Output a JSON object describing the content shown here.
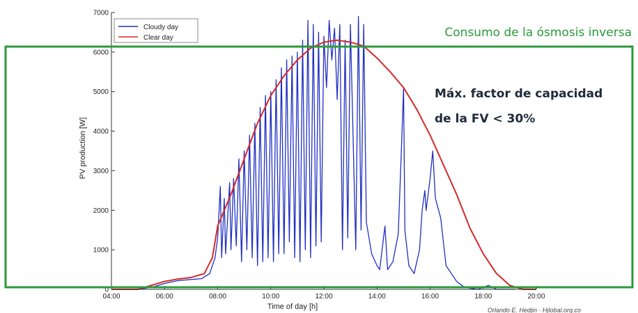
{
  "chart_data": {
    "type": "line",
    "title": "",
    "xlabel": "Time of day [h]",
    "ylabel": "PV production [W]",
    "xlim": [
      4,
      20
    ],
    "ylim": [
      0,
      7000
    ],
    "x_ticks": [
      "04:00",
      "06:00",
      "08:00",
      "10:00",
      "12:00",
      "14:00",
      "16:00",
      "18:00",
      "20:00"
    ],
    "y_ticks": [
      "0",
      "1000",
      "2000",
      "3000",
      "4000",
      "5000",
      "6000",
      "7000"
    ],
    "grid": false,
    "legend_position": "top-left",
    "series": [
      {
        "name": "Cloudy day",
        "color": "#1f2fbf",
        "points": [
          [
            4.0,
            0
          ],
          [
            5.0,
            0
          ],
          [
            5.5,
            50
          ],
          [
            6.0,
            150
          ],
          [
            6.5,
            220
          ],
          [
            7.0,
            250
          ],
          [
            7.4,
            270
          ],
          [
            7.7,
            400
          ],
          [
            7.9,
            800
          ],
          [
            8.0,
            1300
          ],
          [
            8.1,
            2600
          ],
          [
            8.15,
            800
          ],
          [
            8.25,
            2300
          ],
          [
            8.3,
            900
          ],
          [
            8.45,
            2700
          ],
          [
            8.5,
            1000
          ],
          [
            8.6,
            2800
          ],
          [
            8.7,
            1100
          ],
          [
            8.8,
            3300
          ],
          [
            8.9,
            700
          ],
          [
            9.0,
            3500
          ],
          [
            9.1,
            1000
          ],
          [
            9.2,
            3900
          ],
          [
            9.3,
            800
          ],
          [
            9.4,
            4200
          ],
          [
            9.5,
            600
          ],
          [
            9.6,
            4600
          ],
          [
            9.7,
            700
          ],
          [
            9.8,
            4900
          ],
          [
            9.9,
            800
          ],
          [
            10.0,
            5000
          ],
          [
            10.1,
            700
          ],
          [
            10.2,
            5300
          ],
          [
            10.3,
            900
          ],
          [
            10.4,
            5600
          ],
          [
            10.5,
            900
          ],
          [
            10.6,
            5800
          ],
          [
            10.7,
            1200
          ],
          [
            10.8,
            5900
          ],
          [
            10.9,
            800
          ],
          [
            11.0,
            6000
          ],
          [
            11.1,
            700
          ],
          [
            11.2,
            6300
          ],
          [
            11.3,
            1000
          ],
          [
            11.4,
            6800
          ],
          [
            11.5,
            800
          ],
          [
            11.6,
            6700
          ],
          [
            11.7,
            1100
          ],
          [
            11.8,
            6500
          ],
          [
            11.9,
            1200
          ],
          [
            12.0,
            6400
          ],
          [
            12.1,
            5100
          ],
          [
            12.2,
            6800
          ],
          [
            12.3,
            5800
          ],
          [
            12.4,
            6600
          ],
          [
            12.5,
            4800
          ],
          [
            12.6,
            6700
          ],
          [
            12.7,
            1000
          ],
          [
            12.8,
            6300
          ],
          [
            12.9,
            1300
          ],
          [
            13.0,
            6700
          ],
          [
            13.2,
            1000
          ],
          [
            13.3,
            6900
          ],
          [
            13.4,
            1500
          ],
          [
            13.5,
            6700
          ],
          [
            13.6,
            1700
          ],
          [
            13.8,
            900
          ],
          [
            14.0,
            600
          ],
          [
            14.1,
            500
          ],
          [
            14.3,
            1600
          ],
          [
            14.4,
            500
          ],
          [
            14.6,
            700
          ],
          [
            14.8,
            1400
          ],
          [
            14.9,
            3200
          ],
          [
            15.0,
            5100
          ],
          [
            15.05,
            1500
          ],
          [
            15.2,
            600
          ],
          [
            15.4,
            400
          ],
          [
            15.6,
            1000
          ],
          [
            15.7,
            2000
          ],
          [
            15.8,
            2500
          ],
          [
            15.85,
            2000
          ],
          [
            16.0,
            2800
          ],
          [
            16.1,
            3500
          ],
          [
            16.2,
            2300
          ],
          [
            16.4,
            1800
          ],
          [
            16.5,
            1200
          ],
          [
            16.6,
            600
          ],
          [
            16.8,
            400
          ],
          [
            17.0,
            200
          ],
          [
            17.3,
            50
          ],
          [
            17.8,
            0
          ],
          [
            18.2,
            100
          ],
          [
            18.5,
            0
          ],
          [
            19.2,
            0
          ]
        ]
      },
      {
        "name": "Clear day",
        "color": "#d62828",
        "points": [
          [
            4.0,
            0
          ],
          [
            5.0,
            0
          ],
          [
            5.5,
            100
          ],
          [
            6.0,
            200
          ],
          [
            6.5,
            260
          ],
          [
            7.0,
            300
          ],
          [
            7.5,
            400
          ],
          [
            7.8,
            800
          ],
          [
            8.0,
            1600
          ],
          [
            8.5,
            2400
          ],
          [
            9.0,
            3300
          ],
          [
            9.5,
            4200
          ],
          [
            10.0,
            4900
          ],
          [
            10.5,
            5400
          ],
          [
            11.0,
            5800
          ],
          [
            11.5,
            6100
          ],
          [
            12.0,
            6250
          ],
          [
            12.5,
            6300
          ],
          [
            13.0,
            6250
          ],
          [
            13.5,
            6150
          ],
          [
            14.0,
            5850
          ],
          [
            14.5,
            5500
          ],
          [
            15.0,
            5100
          ],
          [
            15.5,
            4550
          ],
          [
            16.0,
            3900
          ],
          [
            16.5,
            3150
          ],
          [
            17.0,
            2400
          ],
          [
            17.5,
            1550
          ],
          [
            18.0,
            900
          ],
          [
            18.5,
            400
          ],
          [
            19.0,
            100
          ],
          [
            19.5,
            0
          ],
          [
            20.0,
            0
          ]
        ]
      }
    ]
  },
  "annotations": {
    "consumption_label": "Consumo de la ósmosis inversa",
    "capacity_line1": "Máx. factor de capacidad",
    "capacity_line2": "de la FV < 30%",
    "consumption_color": "#2a9a3a",
    "credit": "Orlando E. Hedjin · Hjlobal.org.co"
  }
}
